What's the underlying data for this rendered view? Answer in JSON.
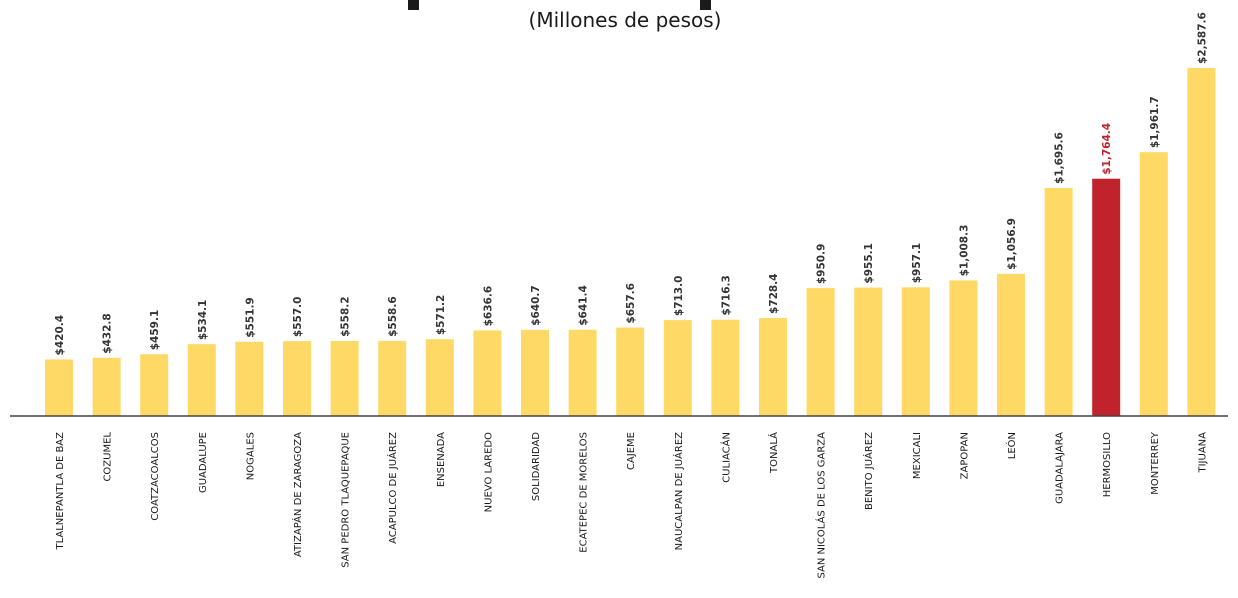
{
  "subtitle": "(Millones de pesos)",
  "colors": {
    "bar": "#FFD966",
    "highlight": "#C0232B",
    "label": "#333333",
    "highlight_label": "#C0232B",
    "axis": "#444444"
  },
  "chart_data": {
    "type": "bar",
    "title": "",
    "subtitle": "(Millones de pesos)",
    "xlabel": "",
    "ylabel": "",
    "ylim": [
      0,
      2587.6
    ],
    "grid": false,
    "categories": [
      "TLALNEPANTLA DE BAZ",
      "COZUMEL",
      "COATZACOALCOS",
      "GUADALUPE",
      "NOGALES",
      "ATIZAPÁN DE ZARAGOZA",
      "SAN PEDRO TLAQUEPAQUE",
      "ACAPULCO DE JUÁREZ",
      "ENSENADA",
      "NUEVO LAREDO",
      "SOLIDARIDAD",
      "ECATEPEC DE MORELOS",
      "CAJEME",
      "NAUCALPAN DE JUÁREZ",
      "CULIACÁN",
      "TONALÁ",
      "SAN NICOLÁS DE LOS GARZA",
      "BENITO JUÁREZ",
      "MEXICALI",
      "ZAPOPAN",
      "LEÓN",
      "GUADALAJARA",
      "HERMOSILLO",
      "MONTERREY",
      "TIJUANA"
    ],
    "values": [
      420.4,
      432.8,
      459.1,
      534.1,
      551.9,
      557.0,
      558.2,
      558.6,
      571.2,
      636.6,
      640.7,
      641.4,
      657.6,
      713.0,
      716.3,
      728.4,
      950.9,
      955.1,
      957.1,
      1008.3,
      1056.9,
      1695.6,
      1764.4,
      1961.7,
      2587.6
    ],
    "data_labels": [
      "$420.4",
      "$432.8",
      "$459.1",
      "$534.1",
      "$551.9",
      "$557.0",
      "$558.2",
      "$558.6",
      "$571.2",
      "$636.6",
      "$640.7",
      "$641.4",
      "$657.6",
      "$713.0",
      "$716.3",
      "$728.4",
      "$950.9",
      "$955.1",
      "$957.1",
      "$1,008.3",
      "$1,056.9",
      "$1,695.6",
      "$1,764.4",
      "$1,961.7",
      "$2,587.6"
    ],
    "highlight": "HERMOSILLO"
  }
}
